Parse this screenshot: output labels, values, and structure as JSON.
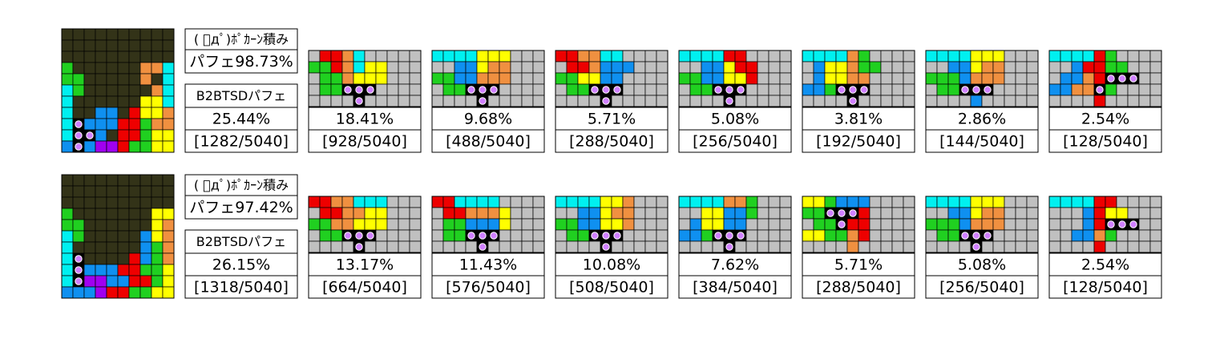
{
  "rows": [
    {
      "method": "( ﾟдﾟ)ﾎﾟｶｰﾝ積み",
      "perfect": "パフェ98.73%",
      "label": "B2BTSDパフェ",
      "percent": "25.44%",
      "count": "[1282/5040]",
      "results": [
        {
          "percent": "18.41%",
          "count": "[928/5040]"
        },
        {
          "percent": "9.68%",
          "count": "[488/5040]"
        },
        {
          "percent": "5.71%",
          "count": "[288/5040]"
        },
        {
          "percent": "5.08%",
          "count": "[256/5040]"
        },
        {
          "percent": "3.81%",
          "count": "[192/5040]"
        },
        {
          "percent": "2.86%",
          "count": "[144/5040]"
        },
        {
          "percent": "2.54%",
          "count": "[128/5040]"
        }
      ]
    },
    {
      "method": "( ﾟдﾟ)ﾎﾟｶｰﾝ積み",
      "perfect": "パフェ97.42%",
      "label": "B2BTSDパフェ",
      "percent": "26.15%",
      "count": "[1318/5040]",
      "results": [
        {
          "percent": "13.17%",
          "count": "[664/5040]"
        },
        {
          "percent": "11.43%",
          "count": "[576/5040]"
        },
        {
          "percent": "10.08%",
          "count": "[508/5040]"
        },
        {
          "percent": "7.62%",
          "count": "[384/5040]"
        },
        {
          "percent": "5.71%",
          "count": "[288/5040]"
        },
        {
          "percent": "5.08%",
          "count": "[256/5040]"
        },
        {
          "percent": "2.54%",
          "count": "[128/5040]"
        }
      ]
    }
  ]
}
